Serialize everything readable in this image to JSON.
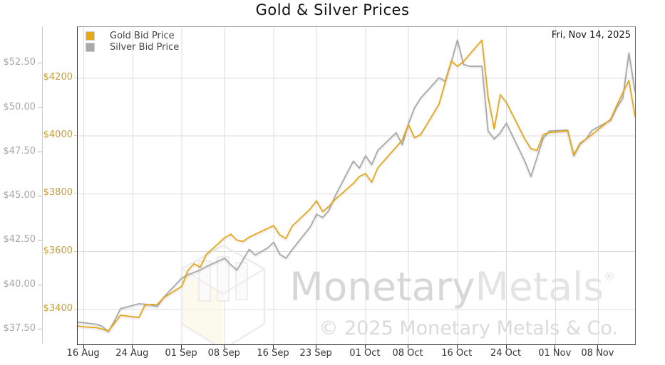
{
  "date_label": "Fri, Nov 14, 2025",
  "watermark": {
    "brand_part1": "Monetary",
    "brand_part2": "Metals",
    "reg_mark": "®",
    "copyright": "© 2025 Monetary Metals & Co."
  },
  "chart_data": {
    "type": "line",
    "title": "Gold & Silver Prices",
    "legend_position": "top-left",
    "grid": {
      "color": "#dddddd",
      "h_axis": "gold",
      "h_values": [
        3400,
        3600,
        3800,
        4000,
        4200
      ],
      "v_days": [
        1,
        9,
        17,
        24,
        32,
        39,
        47,
        54,
        62,
        70,
        78,
        85
      ]
    },
    "x_axis": {
      "min_day": 0,
      "max_day": 91,
      "start_date": "15 Aug 2025",
      "end_date": "14 Nov 2025",
      "tick_days": [
        1,
        9,
        17,
        24,
        32,
        39,
        47,
        54,
        62,
        70,
        78,
        85
      ],
      "tick_labels": [
        "16 Aug",
        "24 Aug",
        "01 Sep",
        "08 Sep",
        "16 Sep",
        "23 Sep",
        "01 Oct",
        "08 Oct",
        "16 Oct",
        "24 Oct",
        "01 Nov",
        "08 Nov"
      ]
    },
    "left_axis_silver": {
      "min": 36.66,
      "max": 54.56,
      "ticks": [
        37.5,
        40,
        42.5,
        45,
        47.5,
        50,
        52.5
      ],
      "tick_labels": [
        "$37.50",
        "$40.00",
        "$42.50",
        "$45.00",
        "$47.50",
        "$50.00",
        "$52.50"
      ],
      "label_color": "#a5a5a5"
    },
    "left_axis_gold": {
      "min": 3279,
      "max": 4377,
      "ticks": [
        3400,
        3600,
        3800,
        4000,
        4200
      ],
      "tick_labels": [
        "$3400",
        "$3600",
        "$3800",
        "$4000",
        "$4200"
      ],
      "label_color": "#c49d3d"
    },
    "series": [
      {
        "name": "Silver Bid Price",
        "color": "#a9a9a9",
        "axis": "silver",
        "points": [
          [
            0,
            37.92
          ],
          [
            1,
            37.88
          ],
          [
            2,
            37.84
          ],
          [
            3,
            37.8
          ],
          [
            4,
            37.68
          ],
          [
            5,
            37.38
          ],
          [
            6,
            37.98
          ],
          [
            7,
            38.68
          ],
          [
            10,
            38.95
          ],
          [
            11,
            38.92
          ],
          [
            12,
            38.88
          ],
          [
            13,
            38.8
          ],
          [
            14,
            39.3
          ],
          [
            17,
            40.4
          ],
          [
            18,
            40.58
          ],
          [
            19,
            40.72
          ],
          [
            20,
            40.86
          ],
          [
            21,
            41.05
          ],
          [
            24,
            41.52
          ],
          [
            25,
            41.15
          ],
          [
            26,
            40.86
          ],
          [
            28,
            42.02
          ],
          [
            29,
            41.7
          ],
          [
            31,
            42.1
          ],
          [
            32,
            42.42
          ],
          [
            33,
            41.75
          ],
          [
            34,
            41.52
          ],
          [
            35,
            42.0
          ],
          [
            38,
            43.3
          ],
          [
            39,
            44.0
          ],
          [
            40,
            43.82
          ],
          [
            41,
            44.2
          ],
          [
            42,
            45.0
          ],
          [
            45,
            47.0
          ],
          [
            46,
            46.6
          ],
          [
            47,
            47.3
          ],
          [
            48,
            46.8
          ],
          [
            49,
            47.6
          ],
          [
            52,
            48.6
          ],
          [
            53,
            47.92
          ],
          [
            54,
            49.1
          ],
          [
            55,
            50.0
          ],
          [
            56,
            50.55
          ],
          [
            59,
            51.7
          ],
          [
            60,
            51.5
          ],
          [
            61,
            52.6
          ],
          [
            62,
            53.83
          ],
          [
            63,
            52.45
          ],
          [
            64,
            52.35
          ],
          [
            66,
            52.35
          ],
          [
            67,
            48.7
          ],
          [
            68,
            48.25
          ],
          [
            69,
            48.6
          ],
          [
            70,
            49.14
          ],
          [
            73,
            47.0
          ],
          [
            74,
            46.13
          ],
          [
            75,
            47.2
          ],
          [
            76,
            48.3
          ],
          [
            77,
            48.7
          ],
          [
            80,
            48.75
          ],
          [
            81,
            47.3
          ],
          [
            82,
            47.95
          ],
          [
            83,
            48.25
          ],
          [
            84,
            48.74
          ],
          [
            87,
            49.3
          ],
          [
            88,
            50.0
          ],
          [
            89,
            50.55
          ],
          [
            90,
            53.1
          ],
          [
            91,
            50.9
          ]
        ]
      },
      {
        "name": "Gold Bid Price",
        "color": "#e6a817",
        "axis": "gold",
        "points": [
          [
            0,
            3343
          ],
          [
            1,
            3340
          ],
          [
            2,
            3338
          ],
          [
            3,
            3337
          ],
          [
            4,
            3332
          ],
          [
            5,
            3326
          ],
          [
            6,
            3352
          ],
          [
            7,
            3380
          ],
          [
            10,
            3372
          ],
          [
            11,
            3415
          ],
          [
            12,
            3417
          ],
          [
            13,
            3417
          ],
          [
            14,
            3440
          ],
          [
            17,
            3480
          ],
          [
            18,
            3535
          ],
          [
            19,
            3558
          ],
          [
            20,
            3546
          ],
          [
            21,
            3590
          ],
          [
            24,
            3648
          ],
          [
            25,
            3660
          ],
          [
            26,
            3640
          ],
          [
            27,
            3635
          ],
          [
            28,
            3650
          ],
          [
            31,
            3680
          ],
          [
            32,
            3690
          ],
          [
            33,
            3658
          ],
          [
            34,
            3645
          ],
          [
            35,
            3688
          ],
          [
            38,
            3748
          ],
          [
            39,
            3776
          ],
          [
            40,
            3738
          ],
          [
            41,
            3756
          ],
          [
            42,
            3780
          ],
          [
            45,
            3836
          ],
          [
            46,
            3860
          ],
          [
            47,
            3870
          ],
          [
            48,
            3840
          ],
          [
            49,
            3890
          ],
          [
            52,
            3962
          ],
          [
            53,
            3986
          ],
          [
            54,
            4040
          ],
          [
            55,
            3994
          ],
          [
            56,
            4005
          ],
          [
            59,
            4110
          ],
          [
            60,
            4185
          ],
          [
            61,
            4260
          ],
          [
            62,
            4241
          ],
          [
            63,
            4258
          ],
          [
            66,
            4332
          ],
          [
            67,
            4135
          ],
          [
            68,
            4025
          ],
          [
            69,
            4143
          ],
          [
            70,
            4116
          ],
          [
            73,
            3990
          ],
          [
            74,
            3956
          ],
          [
            75,
            3950
          ],
          [
            76,
            4005
          ],
          [
            77,
            4012
          ],
          [
            80,
            4018
          ],
          [
            81,
            3935
          ],
          [
            82,
            3975
          ],
          [
            83,
            3990
          ],
          [
            84,
            4005
          ],
          [
            87,
            4058
          ],
          [
            88,
            4105
          ],
          [
            89,
            4150
          ],
          [
            90,
            4192
          ],
          [
            91,
            4068
          ]
        ]
      }
    ]
  }
}
